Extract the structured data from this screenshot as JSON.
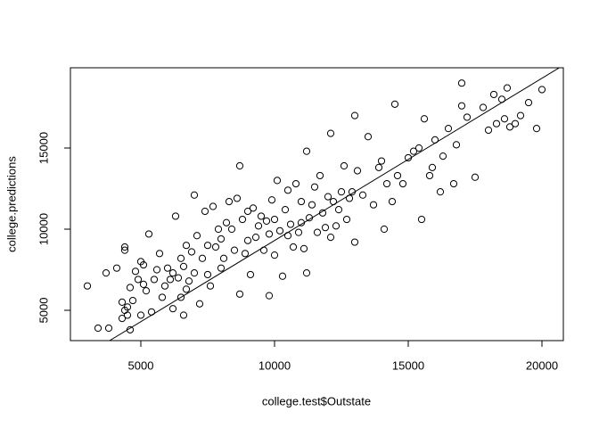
{
  "chart_data": {
    "type": "scatter",
    "xlabel": "college.test$Outstate",
    "ylabel": "college.predictions",
    "xlim": [
      2367,
      20800
    ],
    "ylim": [
      3132,
      19945
    ],
    "xticks": [
      5000,
      10000,
      15000,
      20000
    ],
    "yticks": [
      5000,
      10000,
      15000
    ],
    "color": "#000000",
    "abline": {
      "intercept": -700,
      "slope": 1
    },
    "x": [
      3000,
      3400,
      3700,
      3800,
      4100,
      4300,
      4300,
      4400,
      4400,
      4400,
      4500,
      4500,
      4600,
      4600,
      4700,
      4800,
      4900,
      5000,
      5000,
      5100,
      5100,
      5200,
      5300,
      5400,
      5500,
      5600,
      5700,
      5800,
      5900,
      6000,
      6100,
      6200,
      6200,
      6300,
      6400,
      6500,
      6500,
      6600,
      6600,
      6700,
      6700,
      6800,
      6900,
      7000,
      7000,
      7100,
      7200,
      7300,
      7400,
      7500,
      7500,
      7600,
      7700,
      7800,
      7900,
      8000,
      8000,
      8100,
      8200,
      8300,
      8400,
      8500,
      8600,
      8700,
      8700,
      8800,
      8900,
      9000,
      9000,
      9100,
      9200,
      9300,
      9400,
      9500,
      9600,
      9700,
      9800,
      9800,
      9900,
      10000,
      10000,
      10100,
      10200,
      10300,
      10400,
      10500,
      10500,
      10600,
      10700,
      10800,
      10900,
      11000,
      11000,
      11100,
      11200,
      11200,
      11300,
      11400,
      11500,
      11600,
      11700,
      11800,
      11900,
      12000,
      12100,
      12100,
      12200,
      12300,
      12400,
      12500,
      12600,
      12700,
      12800,
      12900,
      13000,
      13000,
      13100,
      13300,
      13500,
      13700,
      13900,
      14000,
      14100,
      14200,
      14400,
      14500,
      14600,
      14800,
      15000,
      15200,
      15400,
      15500,
      15600,
      15800,
      15900,
      16000,
      16200,
      16300,
      16500,
      16700,
      16800,
      17000,
      17000,
      17200,
      17500,
      17800,
      18000,
      18200,
      18300,
      18500,
      18600,
      18700,
      18800,
      19000,
      19200,
      19500,
      19800,
      20000
    ],
    "values": [
      6500,
      3900,
      7300,
      3900,
      7600,
      4500,
      5500,
      8700,
      5000,
      8900,
      4700,
      5200,
      3800,
      6400,
      5600,
      7400,
      6900,
      8000,
      4700,
      7800,
      6600,
      6200,
      9700,
      4900,
      6900,
      7500,
      8500,
      5800,
      6500,
      7600,
      6900,
      7300,
      5100,
      10800,
      7000,
      5800,
      8200,
      4700,
      7700,
      6300,
      9000,
      6800,
      8600,
      12100,
      7300,
      9600,
      5400,
      8200,
      11100,
      7200,
      9000,
      6500,
      11400,
      8900,
      10000,
      7600,
      9400,
      8200,
      10400,
      11700,
      10000,
      8700,
      11900,
      13900,
      6000,
      10600,
      8500,
      9300,
      11100,
      7200,
      11300,
      9500,
      10200,
      10800,
      8700,
      10500,
      5900,
      9700,
      11800,
      8400,
      10600,
      13000,
      9900,
      7100,
      11200,
      9600,
      12400,
      10300,
      8900,
      12800,
      9800,
      11700,
      10400,
      8800,
      14800,
      7300,
      10700,
      11500,
      12600,
      9800,
      13300,
      11000,
      10100,
      12000,
      15900,
      9500,
      11700,
      10200,
      11200,
      12300,
      13900,
      10600,
      11900,
      12300,
      17000,
      9200,
      13600,
      12100,
      15700,
      11500,
      13800,
      14200,
      10000,
      12800,
      11700,
      17700,
      13300,
      12800,
      14400,
      14800,
      15000,
      10600,
      16800,
      13300,
      13800,
      15500,
      12300,
      14500,
      16200,
      12800,
      15200,
      19000,
      17600,
      16900,
      13200,
      17500,
      16100,
      18300,
      16500,
      18000,
      16800,
      18700,
      16300,
      16500,
      17000,
      17800,
      16200,
      18600
    ]
  }
}
